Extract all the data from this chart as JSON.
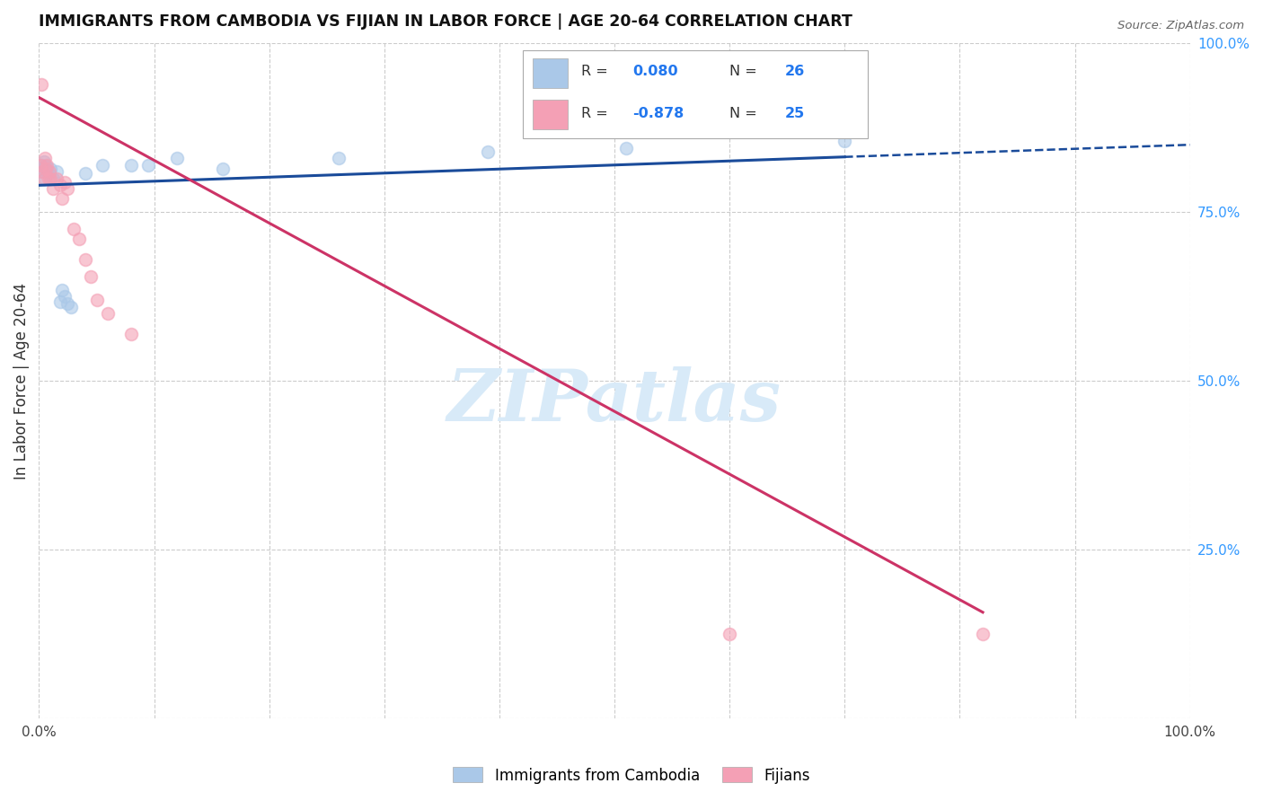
{
  "title": "IMMIGRANTS FROM CAMBODIA VS FIJIAN IN LABOR FORCE | AGE 20-64 CORRELATION CHART",
  "source": "Source: ZipAtlas.com",
  "ylabel": "In Labor Force | Age 20-64",
  "xlim": [
    0,
    1.0
  ],
  "ylim": [
    0,
    1.0
  ],
  "xticks": [
    0.0,
    0.1,
    0.2,
    0.3,
    0.4,
    0.5,
    0.6,
    0.7,
    0.8,
    0.9,
    1.0
  ],
  "yticks": [
    0.0,
    0.25,
    0.5,
    0.75,
    1.0
  ],
  "ytick_labels_right": [
    "",
    "25.0%",
    "50.0%",
    "75.0%",
    "100.0%"
  ],
  "background_color": "#ffffff",
  "grid_color": "#cccccc",
  "cambodia_color": "#aac8e8",
  "fijian_color": "#f4a0b5",
  "cambodia_R": 0.08,
  "cambodia_N": 26,
  "fijian_R": -0.878,
  "fijian_N": 25,
  "cambodia_points": [
    [
      0.001,
      0.815
    ],
    [
      0.002,
      0.82
    ],
    [
      0.003,
      0.81
    ],
    [
      0.004,
      0.825
    ],
    [
      0.005,
      0.8
    ],
    [
      0.006,
      0.818
    ],
    [
      0.007,
      0.812
    ],
    [
      0.008,
      0.808
    ],
    [
      0.01,
      0.815
    ],
    [
      0.012,
      0.8
    ],
    [
      0.015,
      0.81
    ],
    [
      0.018,
      0.618
    ],
    [
      0.02,
      0.635
    ],
    [
      0.022,
      0.625
    ],
    [
      0.025,
      0.615
    ],
    [
      0.028,
      0.61
    ],
    [
      0.04,
      0.808
    ],
    [
      0.055,
      0.82
    ],
    [
      0.08,
      0.82
    ],
    [
      0.095,
      0.82
    ],
    [
      0.12,
      0.83
    ],
    [
      0.16,
      0.815
    ],
    [
      0.26,
      0.83
    ],
    [
      0.39,
      0.84
    ],
    [
      0.51,
      0.845
    ],
    [
      0.7,
      0.855
    ]
  ],
  "fijian_points": [
    [
      0.001,
      0.82
    ],
    [
      0.002,
      0.94
    ],
    [
      0.003,
      0.81
    ],
    [
      0.004,
      0.8
    ],
    [
      0.005,
      0.83
    ],
    [
      0.006,
      0.815
    ],
    [
      0.007,
      0.82
    ],
    [
      0.008,
      0.8
    ],
    [
      0.009,
      0.81
    ],
    [
      0.01,
      0.8
    ],
    [
      0.012,
      0.785
    ],
    [
      0.015,
      0.8
    ],
    [
      0.018,
      0.79
    ],
    [
      0.02,
      0.77
    ],
    [
      0.022,
      0.795
    ],
    [
      0.025,
      0.785
    ],
    [
      0.03,
      0.725
    ],
    [
      0.035,
      0.71
    ],
    [
      0.04,
      0.68
    ],
    [
      0.045,
      0.655
    ],
    [
      0.05,
      0.62
    ],
    [
      0.06,
      0.6
    ],
    [
      0.08,
      0.57
    ],
    [
      0.6,
      0.125
    ],
    [
      0.82,
      0.125
    ]
  ],
  "cambodia_line_color": "#1a4b9a",
  "fijian_line_color": "#cc3366",
  "watermark_text": "ZIPatlas",
  "watermark_color": "#d8eaf8",
  "marker_size": 100,
  "marker_alpha": 0.6,
  "marker_edge_width": 1.2
}
